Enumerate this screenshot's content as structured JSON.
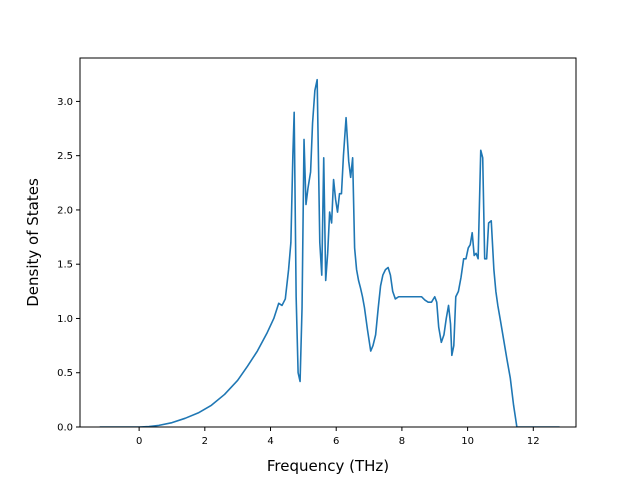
{
  "chart_data": {
    "type": "line",
    "title": "",
    "xlabel": "Frequency (THz)",
    "ylabel": "Density of States",
    "xlim": [
      -1.8,
      13.3
    ],
    "ylim": [
      0.0,
      3.4
    ],
    "xticks": [
      0,
      2,
      4,
      6,
      8,
      10,
      12
    ],
    "yticks": [
      0.0,
      0.5,
      1.0,
      1.5,
      2.0,
      2.5,
      3.0
    ],
    "xtick_labels": [
      "0",
      "2",
      "4",
      "6",
      "8",
      "10",
      "12"
    ],
    "ytick_labels": [
      "0.0",
      "0.5",
      "1.0",
      "1.5",
      "2.0",
      "2.5",
      "3.0"
    ],
    "grid": false,
    "legend": "none",
    "series": [
      {
        "color": "#1f77b4",
        "x": [
          -1.2,
          0.0,
          0.3,
          0.6,
          1.0,
          1.4,
          1.8,
          2.2,
          2.6,
          3.0,
          3.3,
          3.6,
          3.9,
          4.1,
          4.25,
          4.35,
          4.45,
          4.55,
          4.62,
          4.68,
          4.72,
          4.78,
          4.84,
          4.9,
          4.96,
          5.02,
          5.08,
          5.14,
          5.22,
          5.28,
          5.35,
          5.42,
          5.5,
          5.56,
          5.62,
          5.68,
          5.74,
          5.8,
          5.86,
          5.92,
          5.98,
          6.04,
          6.1,
          6.16,
          6.22,
          6.3,
          6.38,
          6.44,
          6.5,
          6.56,
          6.62,
          6.68,
          6.74,
          6.8,
          6.86,
          6.95,
          7.05,
          7.12,
          7.2,
          7.28,
          7.35,
          7.42,
          7.5,
          7.58,
          7.65,
          7.72,
          7.8,
          7.9,
          8.0,
          8.2,
          8.4,
          8.6,
          8.7,
          8.8,
          8.9,
          9.0,
          9.06,
          9.12,
          9.2,
          9.28,
          9.35,
          9.42,
          9.48,
          9.52,
          9.58,
          9.64,
          9.72,
          9.8,
          9.88,
          9.95,
          10.02,
          10.08,
          10.14,
          10.2,
          10.26,
          10.32,
          10.4,
          10.46,
          10.52,
          10.58,
          10.64,
          10.72,
          10.8,
          10.86,
          10.92,
          11.0,
          11.1,
          11.2,
          11.3,
          11.4,
          11.5,
          11.58,
          11.65,
          12.0,
          12.8
        ],
        "y": [
          0.0,
          0.0,
          0.004,
          0.015,
          0.04,
          0.08,
          0.13,
          0.2,
          0.3,
          0.43,
          0.56,
          0.7,
          0.87,
          1.0,
          1.14,
          1.12,
          1.18,
          1.45,
          1.7,
          2.5,
          2.9,
          1.2,
          0.5,
          0.42,
          1.1,
          2.65,
          2.05,
          2.2,
          2.35,
          2.8,
          3.1,
          3.2,
          1.7,
          1.4,
          2.48,
          1.35,
          1.6,
          1.98,
          1.88,
          2.28,
          2.1,
          1.98,
          2.15,
          2.15,
          2.5,
          2.85,
          2.45,
          2.3,
          2.48,
          1.65,
          1.45,
          1.35,
          1.28,
          1.2,
          1.1,
          0.9,
          0.7,
          0.75,
          0.85,
          1.1,
          1.3,
          1.4,
          1.45,
          1.47,
          1.4,
          1.25,
          1.18,
          1.2,
          1.2,
          1.2,
          1.2,
          1.2,
          1.17,
          1.15,
          1.15,
          1.2,
          1.15,
          0.92,
          0.78,
          0.85,
          1.0,
          1.12,
          0.95,
          0.66,
          0.75,
          1.2,
          1.25,
          1.38,
          1.55,
          1.55,
          1.65,
          1.68,
          1.79,
          1.58,
          1.6,
          1.55,
          2.55,
          2.48,
          1.55,
          1.55,
          1.88,
          1.9,
          1.45,
          1.25,
          1.12,
          0.98,
          0.8,
          0.62,
          0.45,
          0.2,
          0.0,
          0.0,
          0.0,
          0.0,
          0.0
        ]
      }
    ]
  }
}
